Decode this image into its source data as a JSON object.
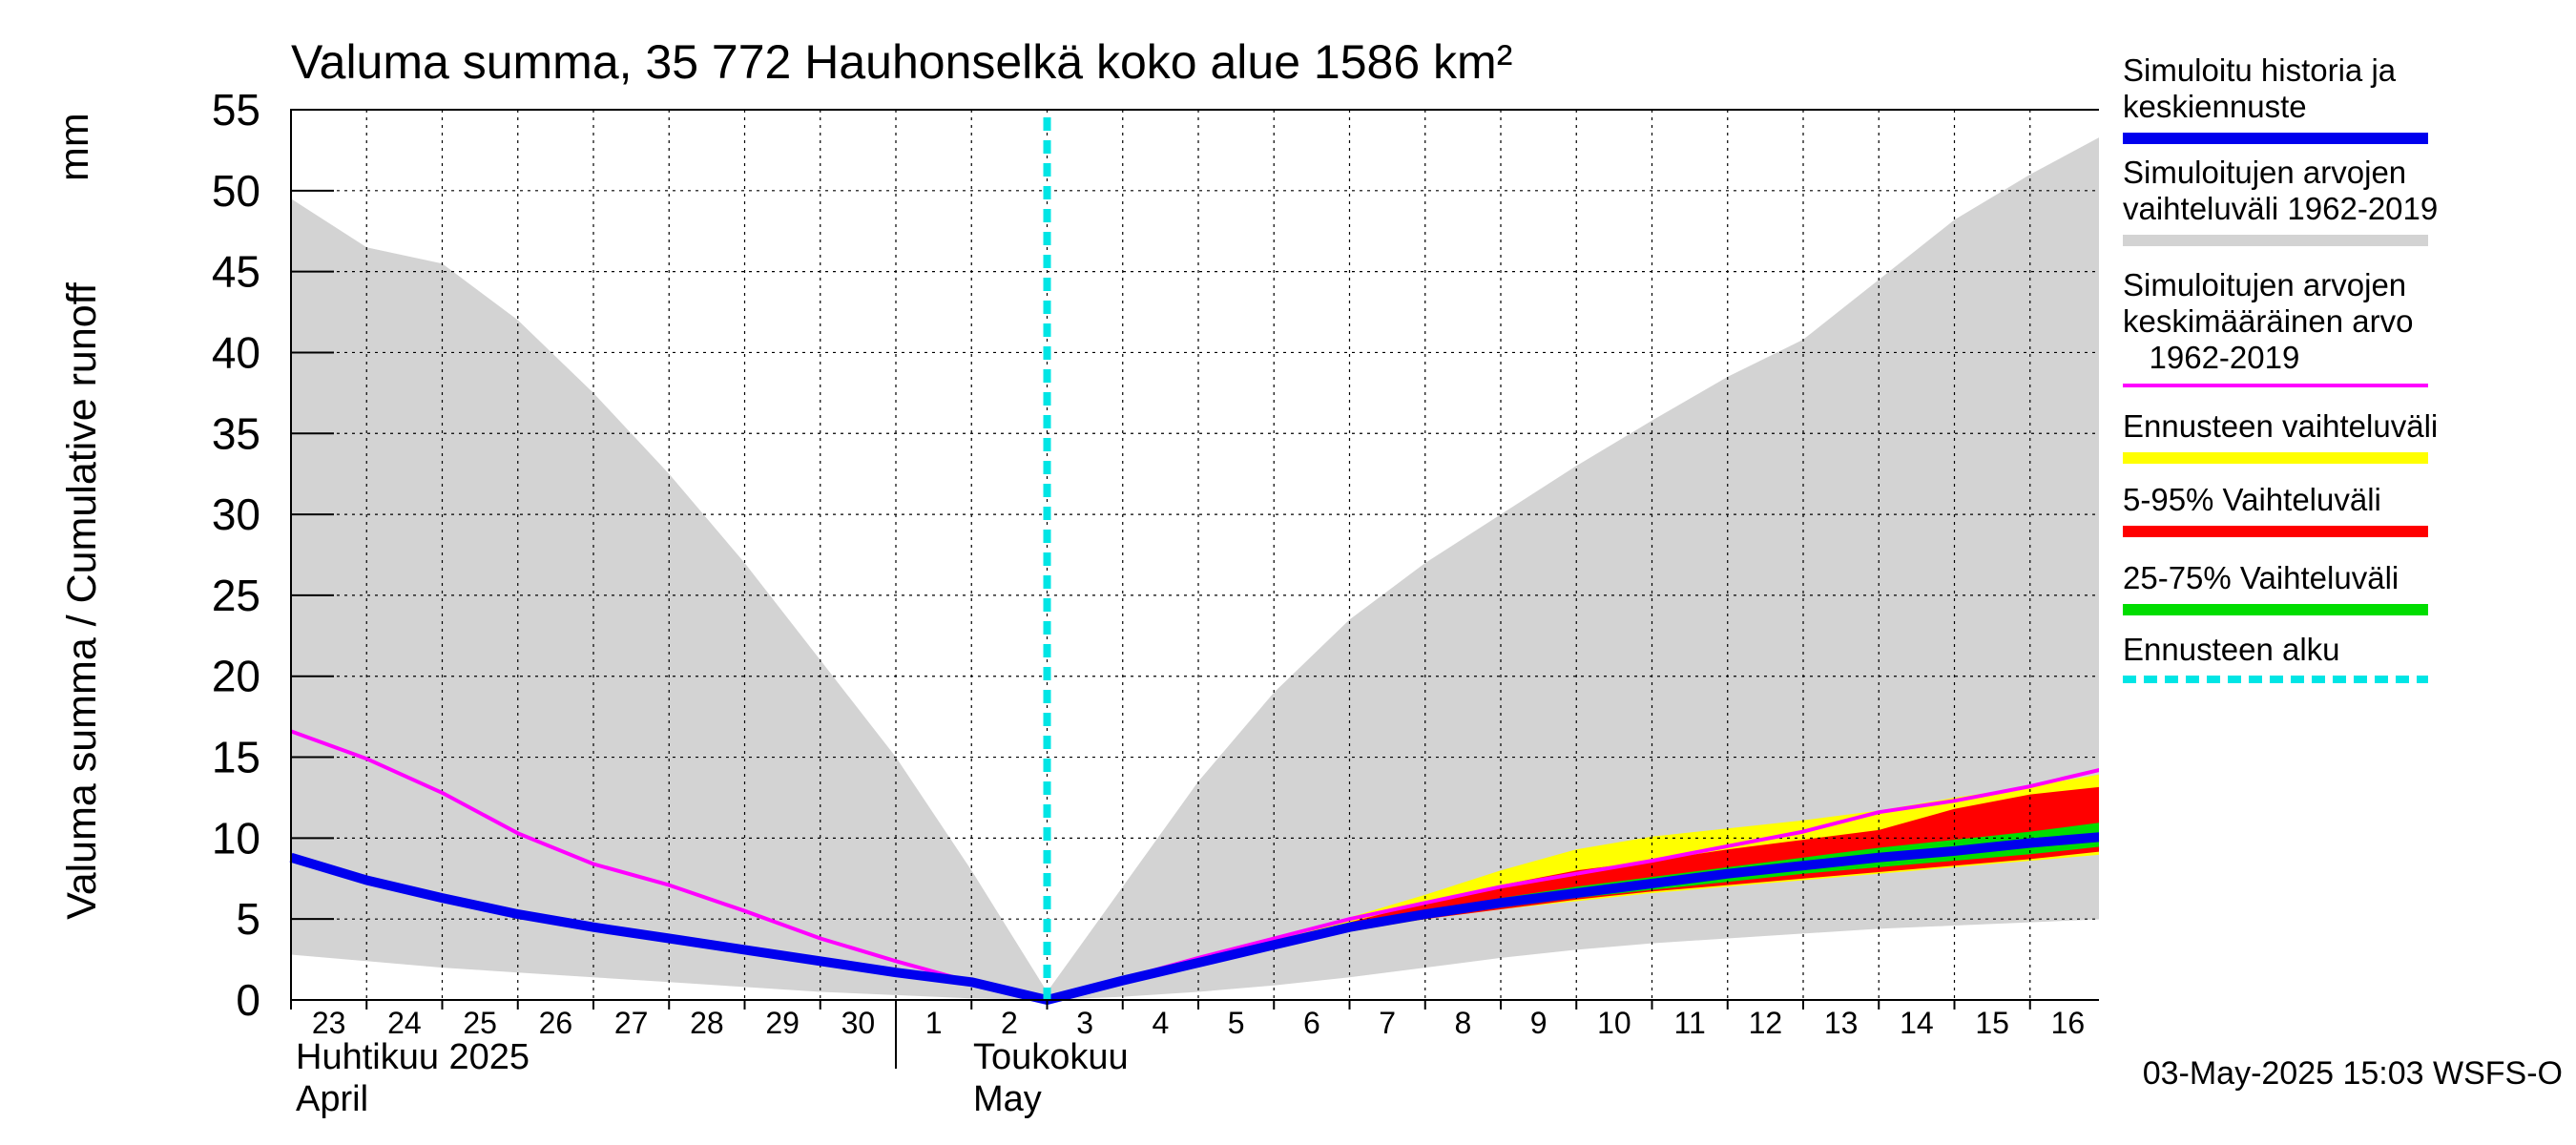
{
  "chart_data": {
    "type": "area",
    "title": "Valuma summa, 35 772 Hauhonselkä koko alue 1586 km²",
    "ylabel": "Valuma summa / Cumulative runoff",
    "yunit": "mm",
    "ylim": [
      0,
      55
    ],
    "yticks": [
      0,
      5,
      10,
      15,
      20,
      25,
      30,
      35,
      40,
      45,
      50,
      55
    ],
    "x_tick_labels": [
      "23",
      "24",
      "25",
      "26",
      "27",
      "28",
      "29",
      "30",
      "1",
      "2",
      "3",
      "4",
      "5",
      "6",
      "7",
      "8",
      "9",
      "10",
      "11",
      "12",
      "13",
      "14",
      "15",
      "16"
    ],
    "month_labels": [
      {
        "fi": "Huhtikuu  2025",
        "en": "April"
      },
      {
        "fi": "Toukokuu",
        "en": "May"
      }
    ],
    "grid": true,
    "forecast_start": "2025-05-03",
    "x_dates": [
      "2025-04-23",
      "2025-04-24",
      "2025-04-25",
      "2025-04-26",
      "2025-04-27",
      "2025-04-28",
      "2025-04-29",
      "2025-04-30",
      "2025-05-01",
      "2025-05-02",
      "2025-05-03",
      "2025-05-04",
      "2025-05-05",
      "2025-05-06",
      "2025-05-07",
      "2025-05-08",
      "2025-05-09",
      "2025-05-10",
      "2025-05-11",
      "2025-05-12",
      "2025-05-13",
      "2025-05-14",
      "2025-05-15",
      "2025-05-16",
      "2025-05-17"
    ],
    "series": [
      {
        "name": "Simuloitujen arvojen vaihteluväli 1962-2019",
        "color": "#d3d3d3",
        "kind": "band",
        "upper": [
          49.5,
          46.5,
          45.5,
          42.0,
          37.5,
          32.5,
          27.0,
          21.0,
          15.0,
          8.0,
          0.5,
          7.0,
          13.5,
          19.0,
          23.5,
          27.0,
          30.0,
          33.0,
          35.8,
          38.5,
          40.8,
          44.5,
          48.2,
          51.0,
          53.5
        ],
        "lower": [
          2.8,
          2.4,
          2.0,
          1.7,
          1.4,
          1.1,
          0.8,
          0.5,
          0.3,
          0.1,
          0.0,
          0.2,
          0.5,
          0.9,
          1.4,
          2.0,
          2.6,
          3.1,
          3.5,
          3.8,
          4.1,
          4.4,
          4.6,
          4.8,
          5.0
        ]
      },
      {
        "name": "Ennusteen vaihteluväli",
        "color": "#ffff00",
        "kind": "band",
        "upper": [
          null,
          null,
          null,
          null,
          null,
          null,
          null,
          null,
          null,
          null,
          0.0,
          1.3,
          2.6,
          3.8,
          5.1,
          6.5,
          8.0,
          9.3,
          10.1,
          10.6,
          11.1,
          11.7,
          12.5,
          13.2,
          14.0
        ],
        "lower": [
          null,
          null,
          null,
          null,
          null,
          null,
          null,
          null,
          null,
          null,
          0.0,
          1.0,
          2.1,
          3.2,
          4.2,
          5.0,
          5.6,
          6.1,
          6.6,
          7.0,
          7.4,
          7.8,
          8.2,
          8.6,
          9.0
        ]
      },
      {
        "name": "5-95% Vaihteluväli",
        "color": "#ff0000",
        "kind": "band",
        "upper": [
          null,
          null,
          null,
          null,
          null,
          null,
          null,
          null,
          null,
          null,
          0.0,
          1.3,
          2.5,
          3.6,
          4.8,
          6.0,
          7.1,
          8.0,
          8.6,
          9.3,
          9.9,
          10.5,
          11.8,
          12.7,
          13.2
        ],
        "lower": [
          null,
          null,
          null,
          null,
          null,
          null,
          null,
          null,
          null,
          null,
          0.0,
          1.0,
          2.2,
          3.3,
          4.3,
          5.0,
          5.6,
          6.2,
          6.7,
          7.1,
          7.5,
          7.9,
          8.3,
          8.7,
          9.2
        ]
      },
      {
        "name": "25-75% Vaihteluväli",
        "color": "#00dd00",
        "kind": "band",
        "upper": [
          null,
          null,
          null,
          null,
          null,
          null,
          null,
          null,
          null,
          null,
          0.0,
          1.2,
          2.4,
          3.5,
          4.6,
          5.5,
          6.3,
          7.0,
          7.6,
          8.2,
          8.8,
          9.4,
          9.9,
          10.4,
          11.0
        ],
        "lower": [
          null,
          null,
          null,
          null,
          null,
          null,
          null,
          null,
          null,
          null,
          0.0,
          1.1,
          2.3,
          3.4,
          4.5,
          5.1,
          5.7,
          6.3,
          6.8,
          7.3,
          7.8,
          8.2,
          8.6,
          9.0,
          9.5
        ]
      },
      {
        "name": "Simuloitujen arvojen keskimääräinen arvo 1962-2019",
        "color": "#ff00ff",
        "kind": "line",
        "values": [
          16.6,
          14.9,
          12.8,
          10.3,
          8.4,
          7.1,
          5.5,
          3.8,
          2.4,
          1.1,
          0.0,
          1.3,
          2.6,
          3.8,
          5.0,
          6.0,
          7.0,
          7.8,
          8.6,
          9.5,
          10.4,
          11.6,
          12.3,
          13.2,
          14.3
        ]
      },
      {
        "name": "Simuloitu historia ja keskiennuste",
        "color": "#0000ee",
        "kind": "line",
        "values": [
          8.8,
          7.4,
          6.3,
          5.3,
          4.5,
          3.8,
          3.1,
          2.4,
          1.7,
          1.1,
          0.0,
          1.2,
          2.3,
          3.4,
          4.5,
          5.3,
          6.0,
          6.6,
          7.2,
          7.8,
          8.3,
          8.8,
          9.2,
          9.7,
          10.1
        ]
      },
      {
        "name": "Ennusteen alku",
        "color": "#00e5e5",
        "kind": "vline",
        "x": "2025-05-03"
      }
    ]
  },
  "legend": {
    "items": [
      {
        "label": "Simuloitu historia ja\nkeskiennuste",
        "color": "#0000ee",
        "style": "solid"
      },
      {
        "label": "Simuloitujen arvojen\nvaihteluväli 1962-2019",
        "color": "#d3d3d3",
        "style": "solid"
      },
      {
        "label": "Simuloitujen arvojen\nkeskimääräinen arvo\n   1962-2019",
        "color": "#ff00ff",
        "style": "thin"
      },
      {
        "label": "Ennusteen vaihteluväli",
        "color": "#ffff00",
        "style": "solid"
      },
      {
        "label": "5-95% Vaihteluväli",
        "color": "#ff0000",
        "style": "solid"
      },
      {
        "label": "25-75% Vaihteluväli",
        "color": "#00dd00",
        "style": "solid"
      },
      {
        "label": "Ennusteen alku",
        "color": "#00e5e5",
        "style": "dashed"
      }
    ]
  },
  "footer": {
    "timestamp": "03-May-2025 15:03 WSFS-O"
  }
}
